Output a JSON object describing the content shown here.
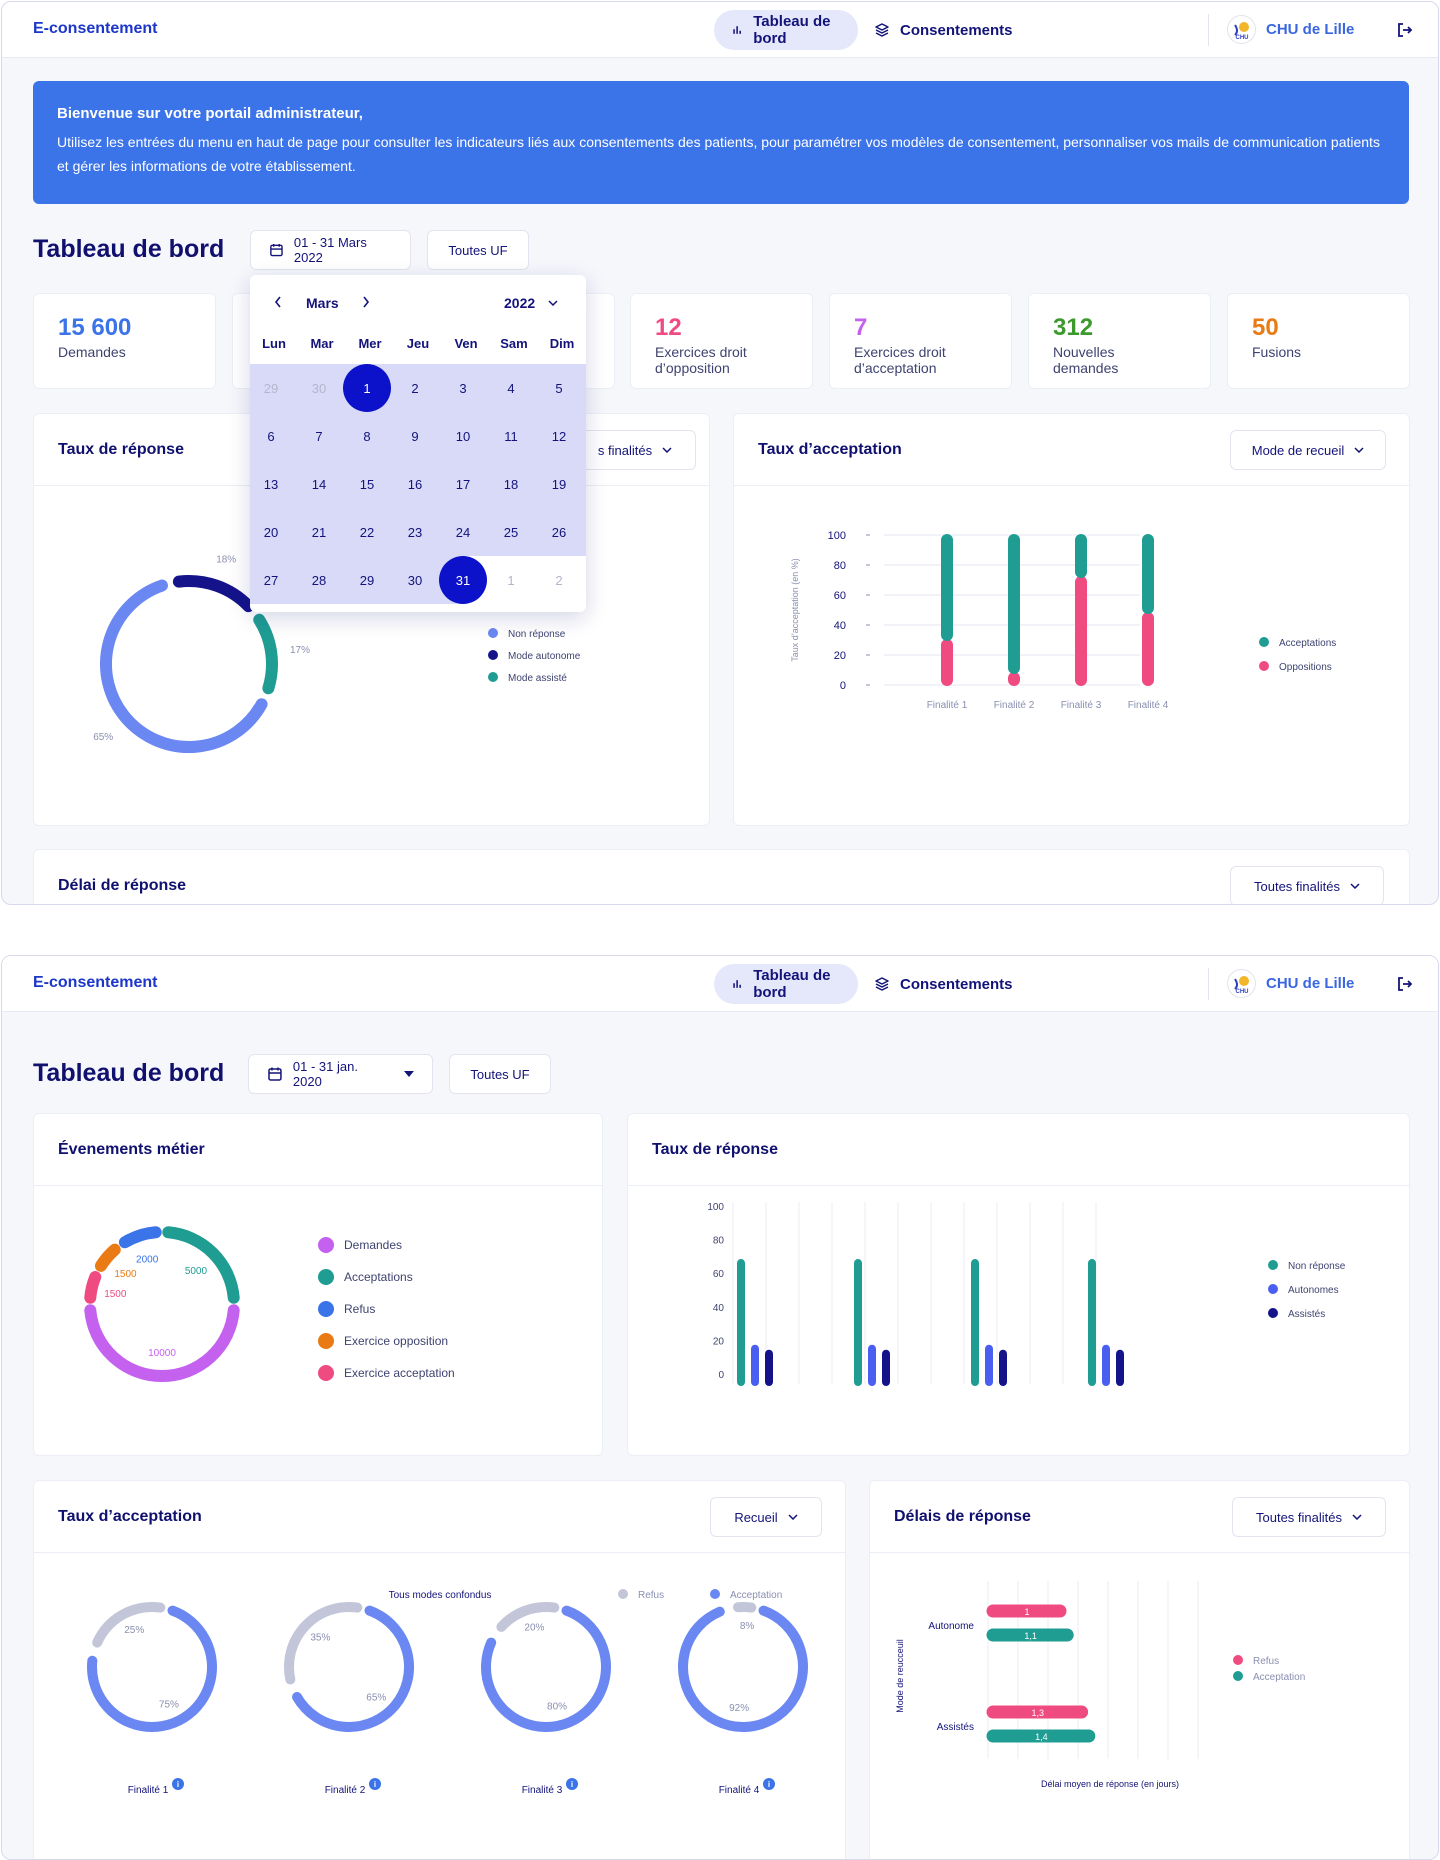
{
  "app": {
    "name": "E-consentement"
  },
  "nav": {
    "dashboard": "Tableau de bord",
    "consents": "Consentements"
  },
  "org": {
    "name": "CHU de Lille",
    "logo_text": "CHU"
  },
  "colors": {
    "navy": "#13137a",
    "primary": "#3b73e8",
    "teal": "#1f9d93",
    "pink": "#ef4b81",
    "blue": "#6b88f2",
    "dark_blue": "#14138a",
    "purple": "#c461ef",
    "orange": "#ea7a14",
    "light_gray": "#c2c6d8",
    "green": "#3c9a2d"
  },
  "view1": {
    "banner": {
      "title": "Bienvenue sur votre portail administrateur,",
      "text": "Utilisez les entrées du menu en haut de page pour consulter les indicateurs liés aux consentements des patients, pour paramétrer vos modèles de consentement, personnaliser vos mails de communication patients et gérer les informations de votre établissement."
    },
    "title": "Tableau de bord",
    "date_range": "01 - 31 Mars 2022",
    "uf_filter": "Toutes UF",
    "stats": [
      {
        "value": "15 600",
        "label": "Demandes",
        "color": "#3b73e8"
      },
      {
        "value": "12",
        "label": "Exercices droit d’opposition",
        "color": "#ef4b81"
      },
      {
        "value": "7",
        "label": "Exercices droit d’acceptation",
        "color": "#c461ef"
      },
      {
        "value": "312",
        "label": "Nouvelles demandes",
        "color": "#3c9a2d"
      },
      {
        "value": "50",
        "label": "Fusions",
        "color": "#ea7a14"
      }
    ],
    "calendar": {
      "month": "Mars",
      "year": "2022",
      "weekdays": [
        "Lun",
        "Mar",
        "Mer",
        "Jeu",
        "Ven",
        "Sam",
        "Dim"
      ],
      "weeks": [
        [
          "29",
          "30",
          "1",
          "2",
          "3",
          "4",
          "5"
        ],
        [
          "6",
          "7",
          "8",
          "9",
          "10",
          "11",
          "12"
        ],
        [
          "13",
          "14",
          "15",
          "16",
          "17",
          "18",
          "19"
        ],
        [
          "20",
          "21",
          "22",
          "23",
          "24",
          "25",
          "26"
        ],
        [
          "27",
          "28",
          "29",
          "30",
          "31",
          "1",
          "2"
        ]
      ],
      "range_start": "1",
      "range_end": "31"
    },
    "response_rate": {
      "title": "Taux de réponse",
      "filter": "s finalités",
      "chart_data": {
        "type": "pie",
        "variant": "donut",
        "slices": [
          {
            "label": "Non réponse",
            "value": 65,
            "label_text": "65%",
            "color": "#6b88f2"
          },
          {
            "label": "Mode autonome",
            "value": 18,
            "label_text": "18%",
            "color": "#14138a"
          },
          {
            "label": "Mode assisté",
            "value": 17,
            "label_text": "17%",
            "color": "#1f9d93"
          }
        ]
      }
    },
    "acceptance_rate": {
      "title": "Taux d’acceptation",
      "filter": "Mode de recueil",
      "chart_data": {
        "type": "bar",
        "stacked": true,
        "categories": [
          "Finalité 1",
          "Finalité 2",
          "Finalité 3",
          "Finalité 4"
        ],
        "series": [
          {
            "name": "Oppositions",
            "values": [
              30,
              8,
              72,
              48
            ],
            "color": "#ef4b81"
          },
          {
            "name": "Acceptations",
            "values": [
              70,
              92,
              28,
              52
            ],
            "color": "#1f9d93"
          }
        ],
        "ylabel": "Taux d’acceptation (en %)",
        "ylim": [
          0,
          100
        ],
        "yticks": [
          "0",
          "20",
          "40",
          "60",
          "80",
          "100"
        ],
        "legend": "right"
      }
    },
    "delay": {
      "title": "Délai de réponse",
      "filter": "Toutes finalités"
    }
  },
  "view2": {
    "title": "Tableau de bord",
    "date_range": "01 - 31 jan. 2020",
    "uf_filter": "Toutes UF",
    "events": {
      "title": "Évenements métier",
      "chart_data": {
        "type": "pie",
        "variant": "donut",
        "slices": [
          {
            "label": "Demandes",
            "value": 10000,
            "label_text": "10000",
            "color": "#c461ef"
          },
          {
            "label": "Exercice acceptation",
            "value": 1500,
            "label_text": "1500",
            "color": "#ef4b81"
          },
          {
            "label": "Exercice opposition",
            "value": 1500,
            "label_text": "1500",
            "color": "#ea7a14"
          },
          {
            "label": "Refus",
            "value": 2000,
            "label_text": "2000",
            "color": "#3b73e8"
          },
          {
            "label": "Acceptations",
            "value": 5000,
            "label_text": "5000",
            "color": "#1f9d93"
          }
        ]
      },
      "legend": [
        {
          "label": "Demandes",
          "color": "#c461ef"
        },
        {
          "label": "Acceptations",
          "color": "#1f9d93"
        },
        {
          "label": "Refus",
          "color": "#3b73e8"
        },
        {
          "label": "Exercice opposition",
          "color": "#ea7a14"
        },
        {
          "label": "Exercice acceptation",
          "color": "#ef4b81"
        }
      ]
    },
    "response_rate": {
      "title": "Taux de réponse",
      "chart_data": {
        "type": "bar",
        "groups": 4,
        "series": [
          {
            "name": "Non réponse",
            "values": [
              72,
              72,
              72,
              72
            ],
            "color": "#1f9d93"
          },
          {
            "name": "Autonomes",
            "values": [
              21,
              21,
              21,
              21
            ],
            "color": "#4a5ef0"
          },
          {
            "name": "Assistés",
            "values": [
              18,
              18,
              18,
              18
            ],
            "color": "#14138a"
          }
        ],
        "ylim": [
          0,
          100
        ],
        "yticks": [
          "0",
          "20",
          "40",
          "60",
          "80",
          "100"
        ],
        "legend": "right"
      }
    },
    "acceptance_rate": {
      "title": "Taux d’acceptation",
      "filter": "Recueil",
      "subtitle": "Tous modes confondus",
      "legend": [
        {
          "label": "Refus",
          "color": "#c2c6d8"
        },
        {
          "label": "Acceptation",
          "color": "#6b88f2"
        }
      ],
      "chart_data": [
        {
          "type": "pie",
          "variant": "donut",
          "label": "Finalité 1",
          "slices": [
            {
              "label": "Acceptation",
              "value": 75,
              "label_text": "75%"
            },
            {
              "label": "Refus",
              "value": 25,
              "label_text": "25%"
            }
          ]
        },
        {
          "type": "pie",
          "variant": "donut",
          "label": "Finalité 2",
          "slices": [
            {
              "label": "Acceptation",
              "value": 65,
              "label_text": "65%"
            },
            {
              "label": "Refus",
              "value": 35,
              "label_text": "35%"
            }
          ]
        },
        {
          "type": "pie",
          "variant": "donut",
          "label": "Finalité 3",
          "slices": [
            {
              "label": "Acceptation",
              "value": 80,
              "label_text": "80%"
            },
            {
              "label": "Refus",
              "value": 20,
              "label_text": "20%"
            }
          ]
        },
        {
          "type": "pie",
          "variant": "donut",
          "label": "Finalité 4",
          "slices": [
            {
              "label": "Acceptation",
              "value": 92,
              "label_text": "92%"
            },
            {
              "label": "Refus",
              "value": 8,
              "label_text": "8%"
            }
          ]
        }
      ]
    },
    "delays": {
      "title": "Délais de réponse",
      "filter": "Toutes finalités",
      "chart_data": {
        "type": "bar",
        "orientation": "horizontal",
        "categories": [
          "Autonome",
          "Assistés"
        ],
        "series": [
          {
            "name": "Refus",
            "values": [
              1,
              1.3
            ],
            "labels": [
              "1",
              "1,3"
            ],
            "color": "#ef4b81"
          },
          {
            "name": "Acceptation",
            "values": [
              1.1,
              1.4
            ],
            "labels": [
              "1,1",
              "1,4"
            ],
            "color": "#1f9d93"
          }
        ],
        "xlabel": "Délai moyen de réponse (en jours)",
        "ylabel": "Mode de reucceuil",
        "legend": "right"
      }
    }
  }
}
